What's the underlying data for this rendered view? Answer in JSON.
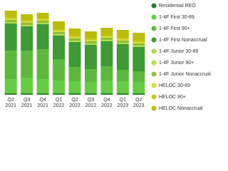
{
  "chart_data": {
    "type": "stacked-bar",
    "categories": [
      "Q2 2021",
      "Q3 2021",
      "Q4 2021",
      "Q1 2022",
      "Q2 2022",
      "Q3 2022",
      "Q4 2022",
      "Q1 2023",
      "Q2 2023"
    ],
    "series": [
      {
        "name": "Residential REO",
        "color": "#2e7d32",
        "values": [
          2,
          2,
          2,
          2,
          2,
          2,
          2,
          2,
          2
        ]
      },
      {
        "name": "1-4F First 30-89",
        "color": "#66cc44",
        "values": [
          20,
          22,
          20,
          18,
          17,
          16,
          18,
          17,
          16
        ]
      },
      {
        "name": "1-4F First 90+",
        "color": "#5fb83e",
        "values": [
          40,
          38,
          42,
          30,
          20,
          18,
          20,
          16,
          15
        ]
      },
      {
        "name": "1-4F First Nonaccrual",
        "color": "#3f9a35",
        "values": [
          38,
          34,
          35,
          33,
          35,
          34,
          35,
          36,
          34
        ]
      },
      {
        "name": "1-4F Junior 30-89",
        "color": "#a8dc4c",
        "values": [
          1,
          1,
          1,
          1,
          1,
          1,
          1,
          1,
          1
        ]
      },
      {
        "name": "1-4F Junior 90+",
        "color": "#b9e04a",
        "values": [
          1,
          1,
          1,
          1,
          1,
          1,
          1,
          1,
          1
        ]
      },
      {
        "name": "1-4F Junior Nonaccrual",
        "color": "#8fbf38",
        "values": [
          3,
          3,
          3,
          3,
          3,
          3,
          3,
          3,
          3
        ]
      },
      {
        "name": "HELOC 30-89",
        "color": "#d4dc3a",
        "values": [
          2,
          2,
          2,
          2,
          2,
          2,
          2,
          2,
          2
        ]
      },
      {
        "name": "HELOC 90+",
        "color": "#c6c81e",
        "values": [
          2,
          2,
          2,
          2,
          2,
          2,
          2,
          2,
          2
        ]
      },
      {
        "name": "HELOC Nonaccrual",
        "color": "#bcbc0c",
        "values": [
          9,
          8,
          7,
          11,
          10,
          10,
          10,
          11,
          11
        ]
      }
    ],
    "legend": "right"
  }
}
